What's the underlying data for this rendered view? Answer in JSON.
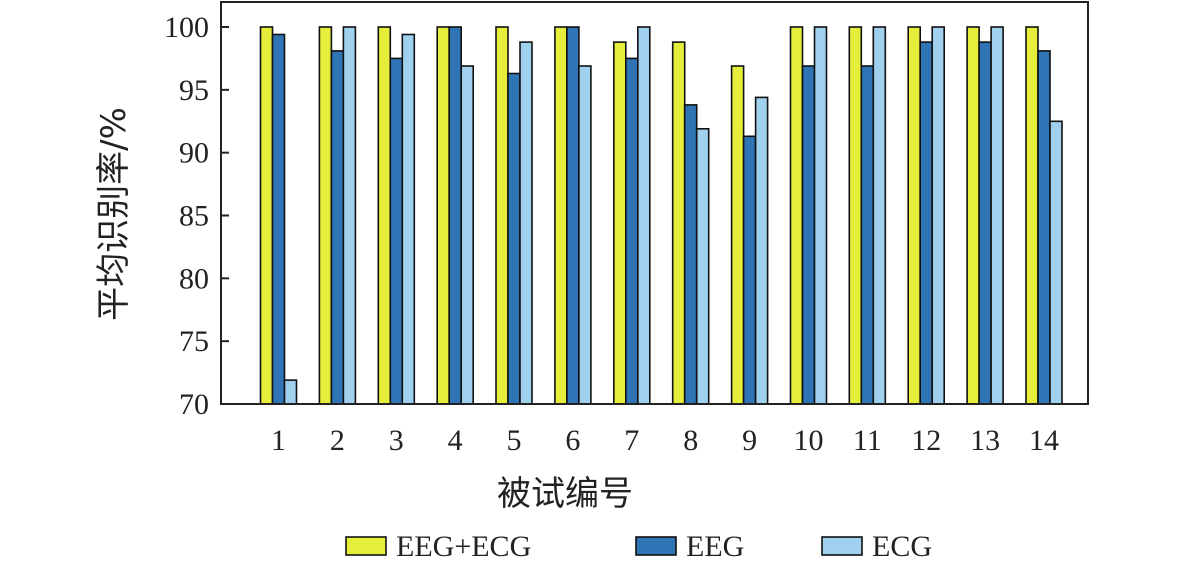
{
  "chart_data": {
    "type": "bar",
    "categories": [
      "1",
      "2",
      "3",
      "4",
      "5",
      "6",
      "7",
      "8",
      "9",
      "10",
      "11",
      "12",
      "13",
      "14"
    ],
    "series": [
      {
        "name": "EEG+ECG",
        "color": "#e6ee3c",
        "values": [
          100,
          100,
          100,
          100,
          100,
          100,
          98.8,
          98.8,
          96.9,
          100,
          100,
          100,
          100,
          100
        ]
      },
      {
        "name": "EEG",
        "color": "#2f74b5",
        "values": [
          99.4,
          98.1,
          97.5,
          100,
          96.3,
          100,
          97.5,
          93.8,
          91.3,
          96.9,
          96.9,
          98.8,
          98.8,
          98.1
        ]
      },
      {
        "name": "ECG",
        "color": "#9fd0ee",
        "values": [
          71.9,
          100,
          99.4,
          96.9,
          98.8,
          96.9,
          100,
          91.9,
          94.4,
          100,
          100,
          100,
          100,
          92.5
        ]
      }
    ],
    "xlabel": "被试编号",
    "ylabel": "平均识别率/%",
    "ylim": [
      70,
      100
    ],
    "yticks": [
      70,
      75,
      80,
      85,
      90,
      95,
      100
    ],
    "grid": false,
    "legend_position": "bottom"
  }
}
